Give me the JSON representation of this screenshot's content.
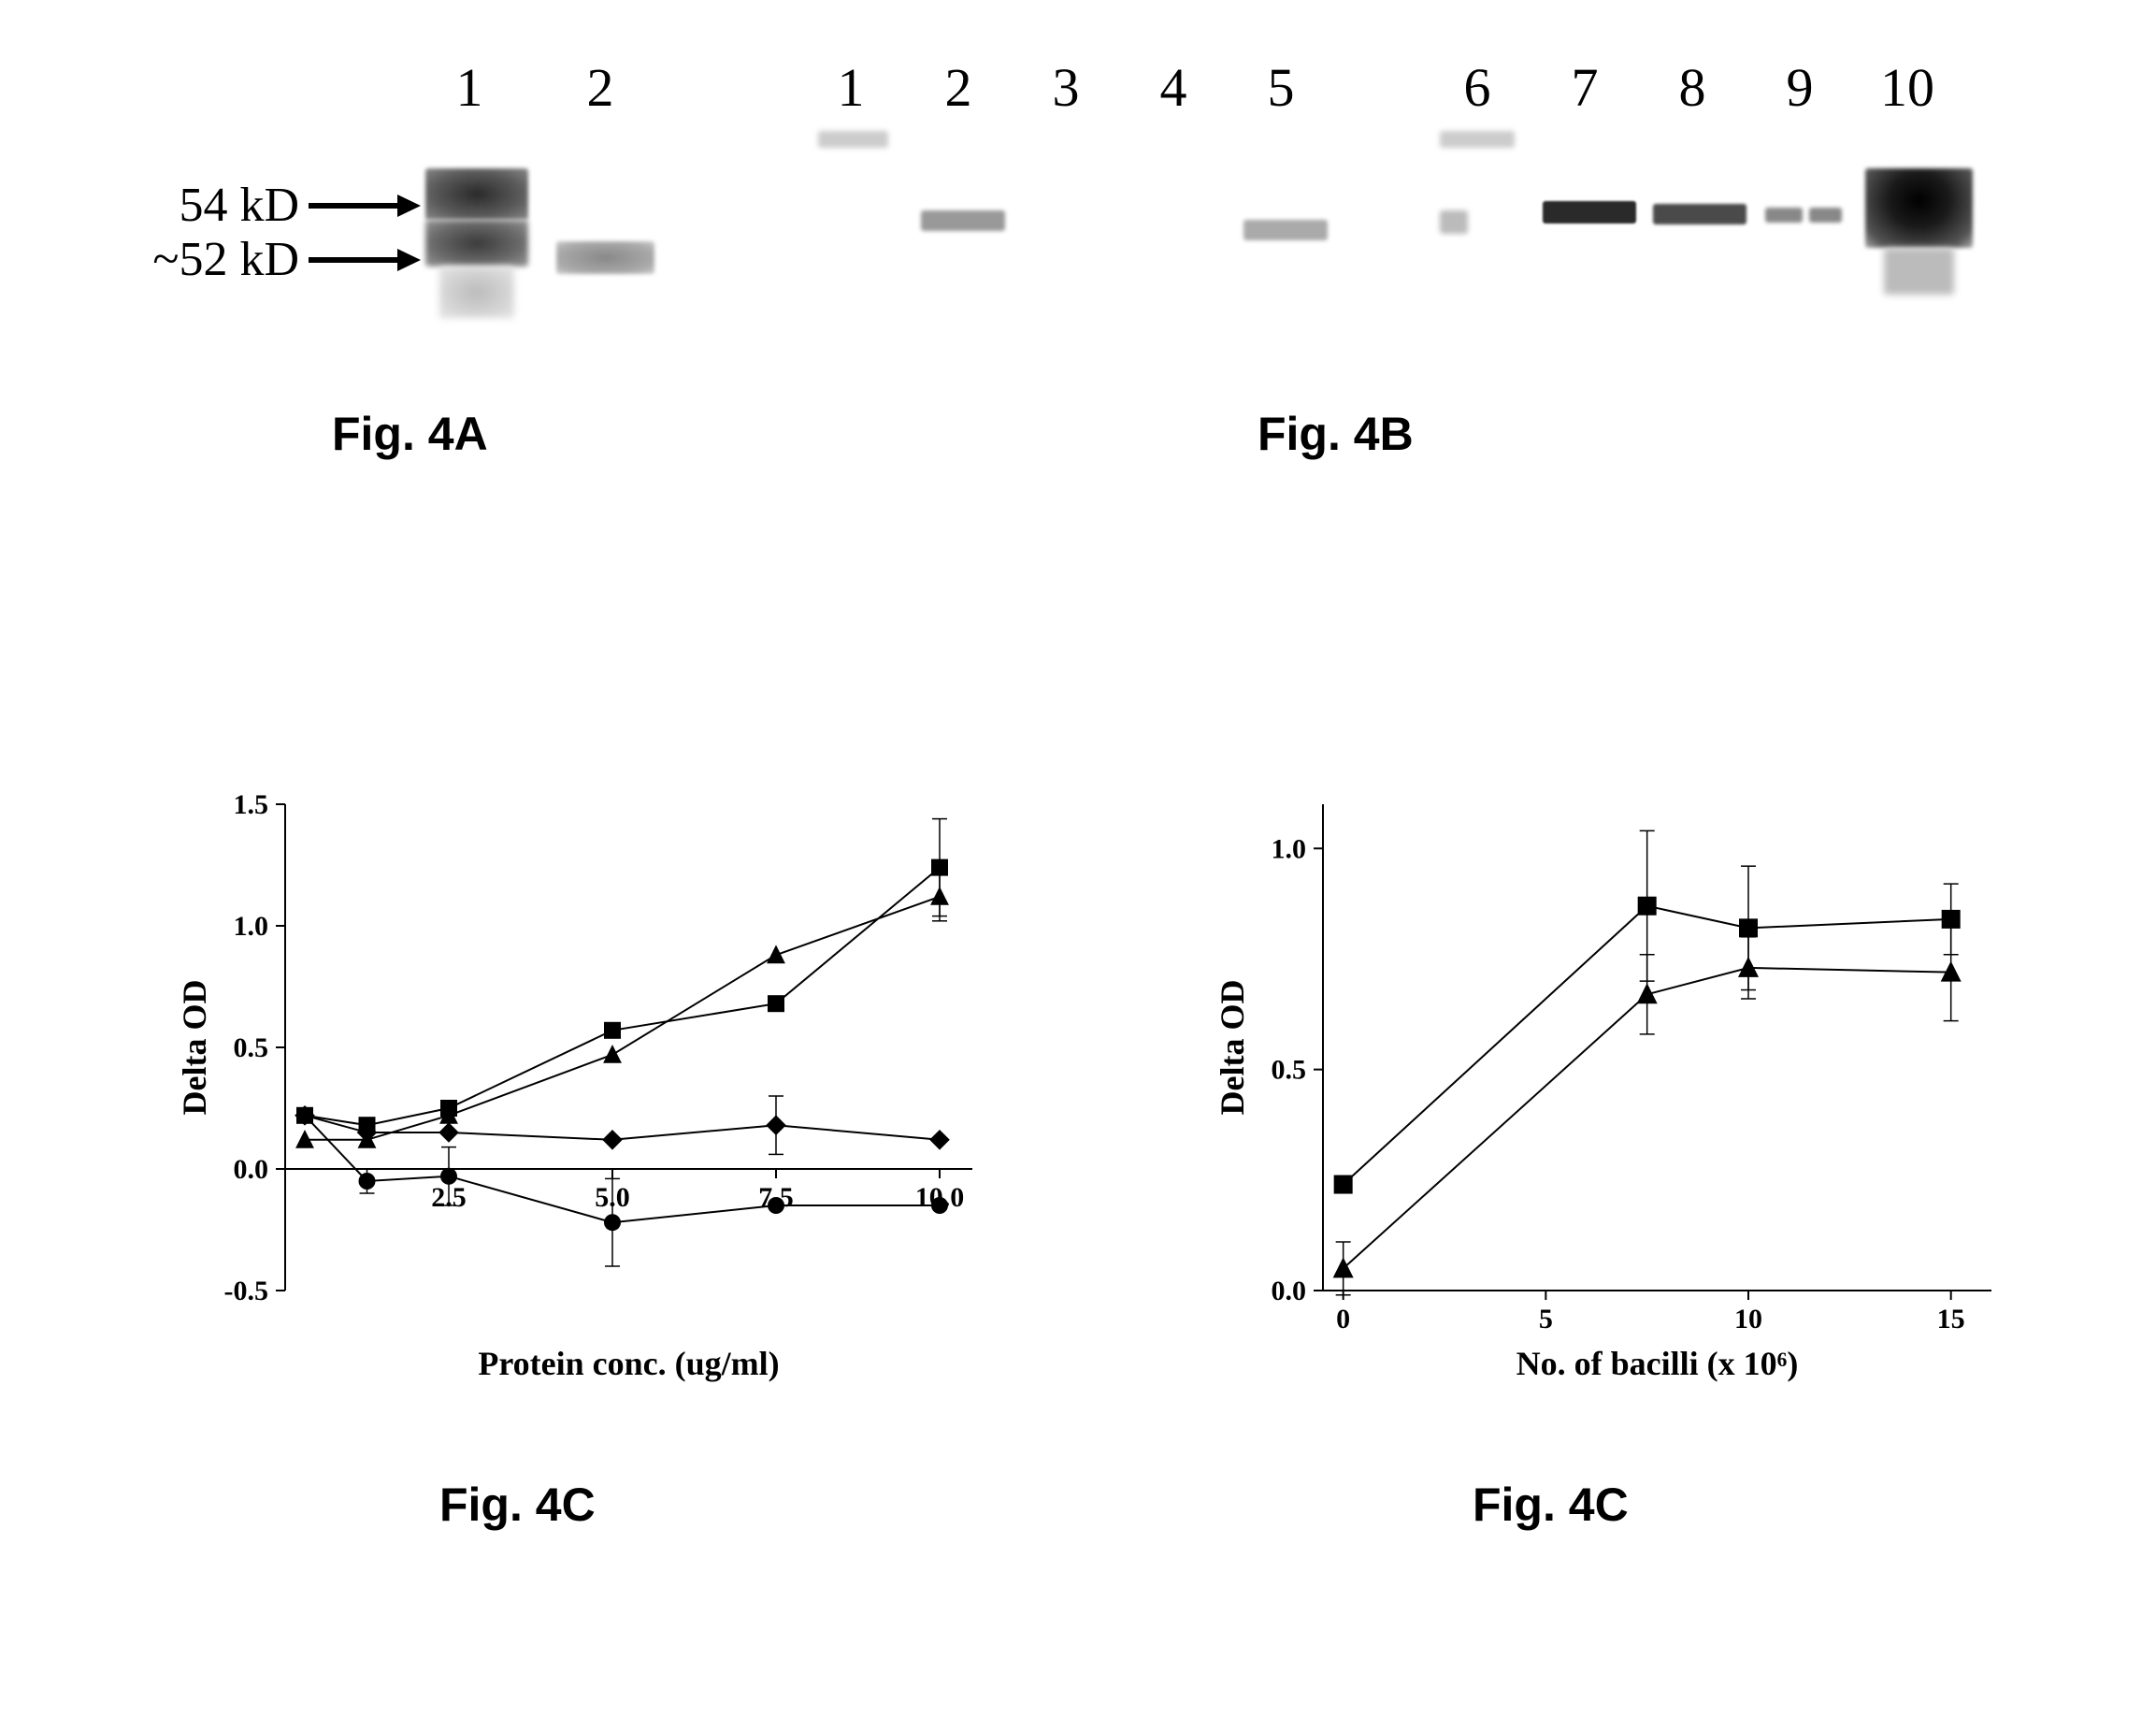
{
  "blotA": {
    "lanes": [
      "1",
      "2"
    ],
    "mw_labels": [
      "54 kD",
      "~52 kD"
    ],
    "lane_fontsize": 58,
    "mw_fontsize": 52,
    "band_color_dark": "#3a3a3a",
    "band_color_mid": "#7a7a7a",
    "band_color_faint": "#b5b5b5",
    "caption": "Fig. 4A"
  },
  "blotB": {
    "lanes_left": [
      "1",
      "2",
      "3",
      "4",
      "5"
    ],
    "lanes_right": [
      "6",
      "7",
      "8",
      "9",
      "10"
    ],
    "lane_fontsize": 58,
    "band_color_dark": "#1a1a1a",
    "band_color_mid": "#606060",
    "band_color_faint": "#a8a8a8",
    "caption": "Fig. 4B"
  },
  "chartC": {
    "type": "line-scatter-errorbar",
    "xlabel": "Protein conc. (ug/ml)",
    "ylabel": "Delta OD",
    "xlim": [
      0,
      10.5
    ],
    "ylim": [
      -0.5,
      1.5
    ],
    "xticks": [
      2.5,
      5.0,
      7.5,
      10.0
    ],
    "xtick_labels": [
      "2.5",
      "5.0",
      "7.5",
      "10.0"
    ],
    "yticks": [
      -0.5,
      0.0,
      0.5,
      1.0,
      1.5
    ],
    "ytick_labels": [
      "-0.5",
      "0.0",
      "0.5",
      "1.0",
      "1.5"
    ],
    "tick_fontsize": 30,
    "label_fontsize": 36,
    "background_color": "#ffffff",
    "line_color": "#000000",
    "marker_fill": "#000000",
    "marker_size": 9,
    "series": [
      {
        "marker": "square",
        "x": [
          0.3,
          1.25,
          2.5,
          5.0,
          7.5,
          10.0
        ],
        "y": [
          0.22,
          0.18,
          0.25,
          0.57,
          0.68,
          1.24
        ],
        "err": [
          0.0,
          0.0,
          0.0,
          0.0,
          0.0,
          0.2
        ]
      },
      {
        "marker": "triangle",
        "x": [
          0.3,
          1.25,
          2.5,
          5.0,
          7.5,
          10.0
        ],
        "y": [
          0.12,
          0.12,
          0.22,
          0.47,
          0.88,
          1.12
        ],
        "err": [
          0.0,
          0.0,
          0.0,
          0.0,
          0.0,
          0.1
        ]
      },
      {
        "marker": "diamond",
        "x": [
          0.3,
          1.25,
          2.5,
          5.0,
          7.5,
          10.0
        ],
        "y": [
          0.22,
          0.15,
          0.15,
          0.12,
          0.18,
          0.12
        ],
        "err": [
          0.0,
          0.0,
          0.0,
          0.0,
          0.12,
          0.0
        ]
      },
      {
        "marker": "circle",
        "x": [
          0.3,
          1.25,
          2.5,
          5.0,
          7.5,
          10.0
        ],
        "y": [
          0.22,
          -0.05,
          -0.03,
          -0.22,
          -0.15,
          -0.15
        ],
        "err": [
          0.0,
          0.05,
          0.12,
          0.18,
          0.0,
          0.0
        ]
      }
    ],
    "caption": "Fig. 4C"
  },
  "chartD": {
    "type": "line-scatter-errorbar",
    "xlabel": "No. of bacilli (x 10⁶)",
    "ylabel": "Delta OD",
    "xlim": [
      -0.5,
      16
    ],
    "ylim": [
      0.0,
      1.1
    ],
    "xticks": [
      0,
      5,
      10,
      15
    ],
    "xtick_labels": [
      "0",
      "5",
      "10",
      "15"
    ],
    "yticks": [
      0.0,
      0.5,
      1.0
    ],
    "ytick_labels": [
      "0.0",
      "0.5",
      "1.0"
    ],
    "tick_fontsize": 30,
    "label_fontsize": 36,
    "background_color": "#ffffff",
    "line_color": "#000000",
    "marker_fill": "#000000",
    "marker_size": 10,
    "series": [
      {
        "marker": "square",
        "x": [
          0,
          7.5,
          10,
          15
        ],
        "y": [
          0.24,
          0.87,
          0.82,
          0.84
        ],
        "err": [
          0.0,
          0.17,
          0.14,
          0.08
        ]
      },
      {
        "marker": "triangle",
        "x": [
          0,
          7.5,
          10,
          15
        ],
        "y": [
          0.05,
          0.67,
          0.73,
          0.72
        ],
        "err": [
          0.06,
          0.09,
          0.07,
          0.11
        ]
      }
    ],
    "caption": "Fig. 4C"
  },
  "caption_fontsize": 50
}
